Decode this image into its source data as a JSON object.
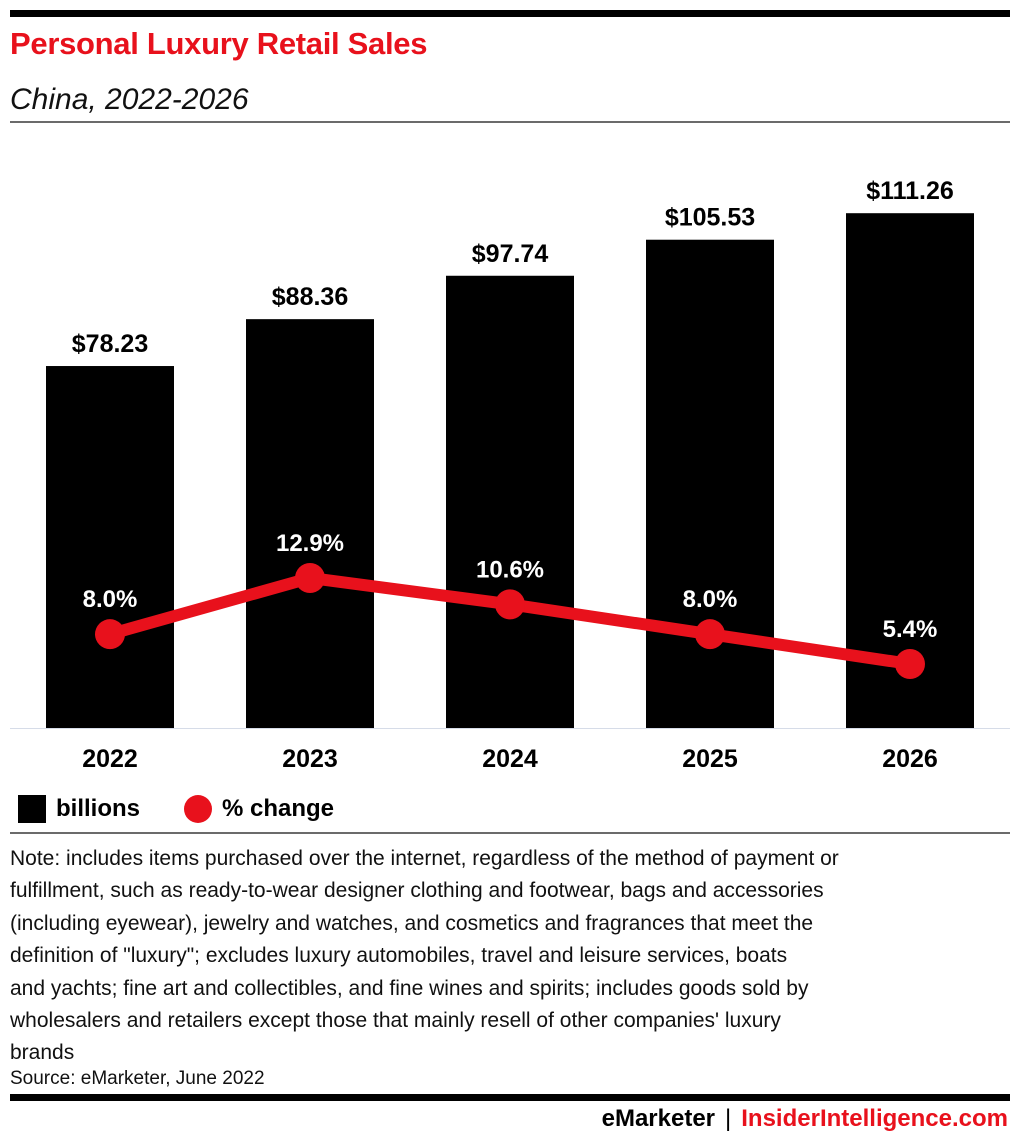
{
  "header": {
    "title": "Personal Luxury Retail Sales",
    "subtitle": "China, 2022-2026"
  },
  "chart_data": {
    "type": "bar",
    "title": "Personal Luxury Retail Sales",
    "subtitle": "China, 2022-2026",
    "categories": [
      "2022",
      "2023",
      "2024",
      "2025",
      "2026"
    ],
    "series": [
      {
        "name": "billions",
        "type": "bar",
        "color": "#000000",
        "values": [
          78.23,
          88.36,
          97.74,
          105.53,
          111.26
        ],
        "labels": [
          "$78.23",
          "$88.36",
          "$97.74",
          "$105.53",
          "$111.26"
        ]
      },
      {
        "name": "% change",
        "type": "line",
        "color": "#e8111c",
        "values": [
          8.0,
          12.9,
          10.6,
          8.0,
          5.4
        ],
        "labels": [
          "8.0%",
          "12.9%",
          "10.6%",
          "8.0%",
          "5.4%"
        ]
      }
    ],
    "xlabel": "",
    "ylabel": "",
    "ylim": [
      0,
      120
    ],
    "grid": false,
    "legend": "bottom-left"
  },
  "legend": {
    "bars_label": "billions",
    "line_label": "% change"
  },
  "footer": {
    "note": "Note: includes items purchased over the internet, regardless of the method of payment or\nfulfillment, such as ready-to-wear designer clothing and footwear, bags and accessories\n(including eyewear), jewelry and watches, and cosmetics and fragrances that meet the\ndefinition of \"luxury\"; excludes luxury automobiles, travel and leisure services, boats\nand yachts; fine art and collectibles, and fine wines and spirits; includes goods sold by\nwholesalers and retailers except those that mainly resell of other companies' luxury\nbrands",
    "source": "Source: eMarketer, June 2022",
    "brand_left": "eMarketer",
    "brand_sep": "|",
    "brand_right": "InsiderIntelligence.com"
  }
}
